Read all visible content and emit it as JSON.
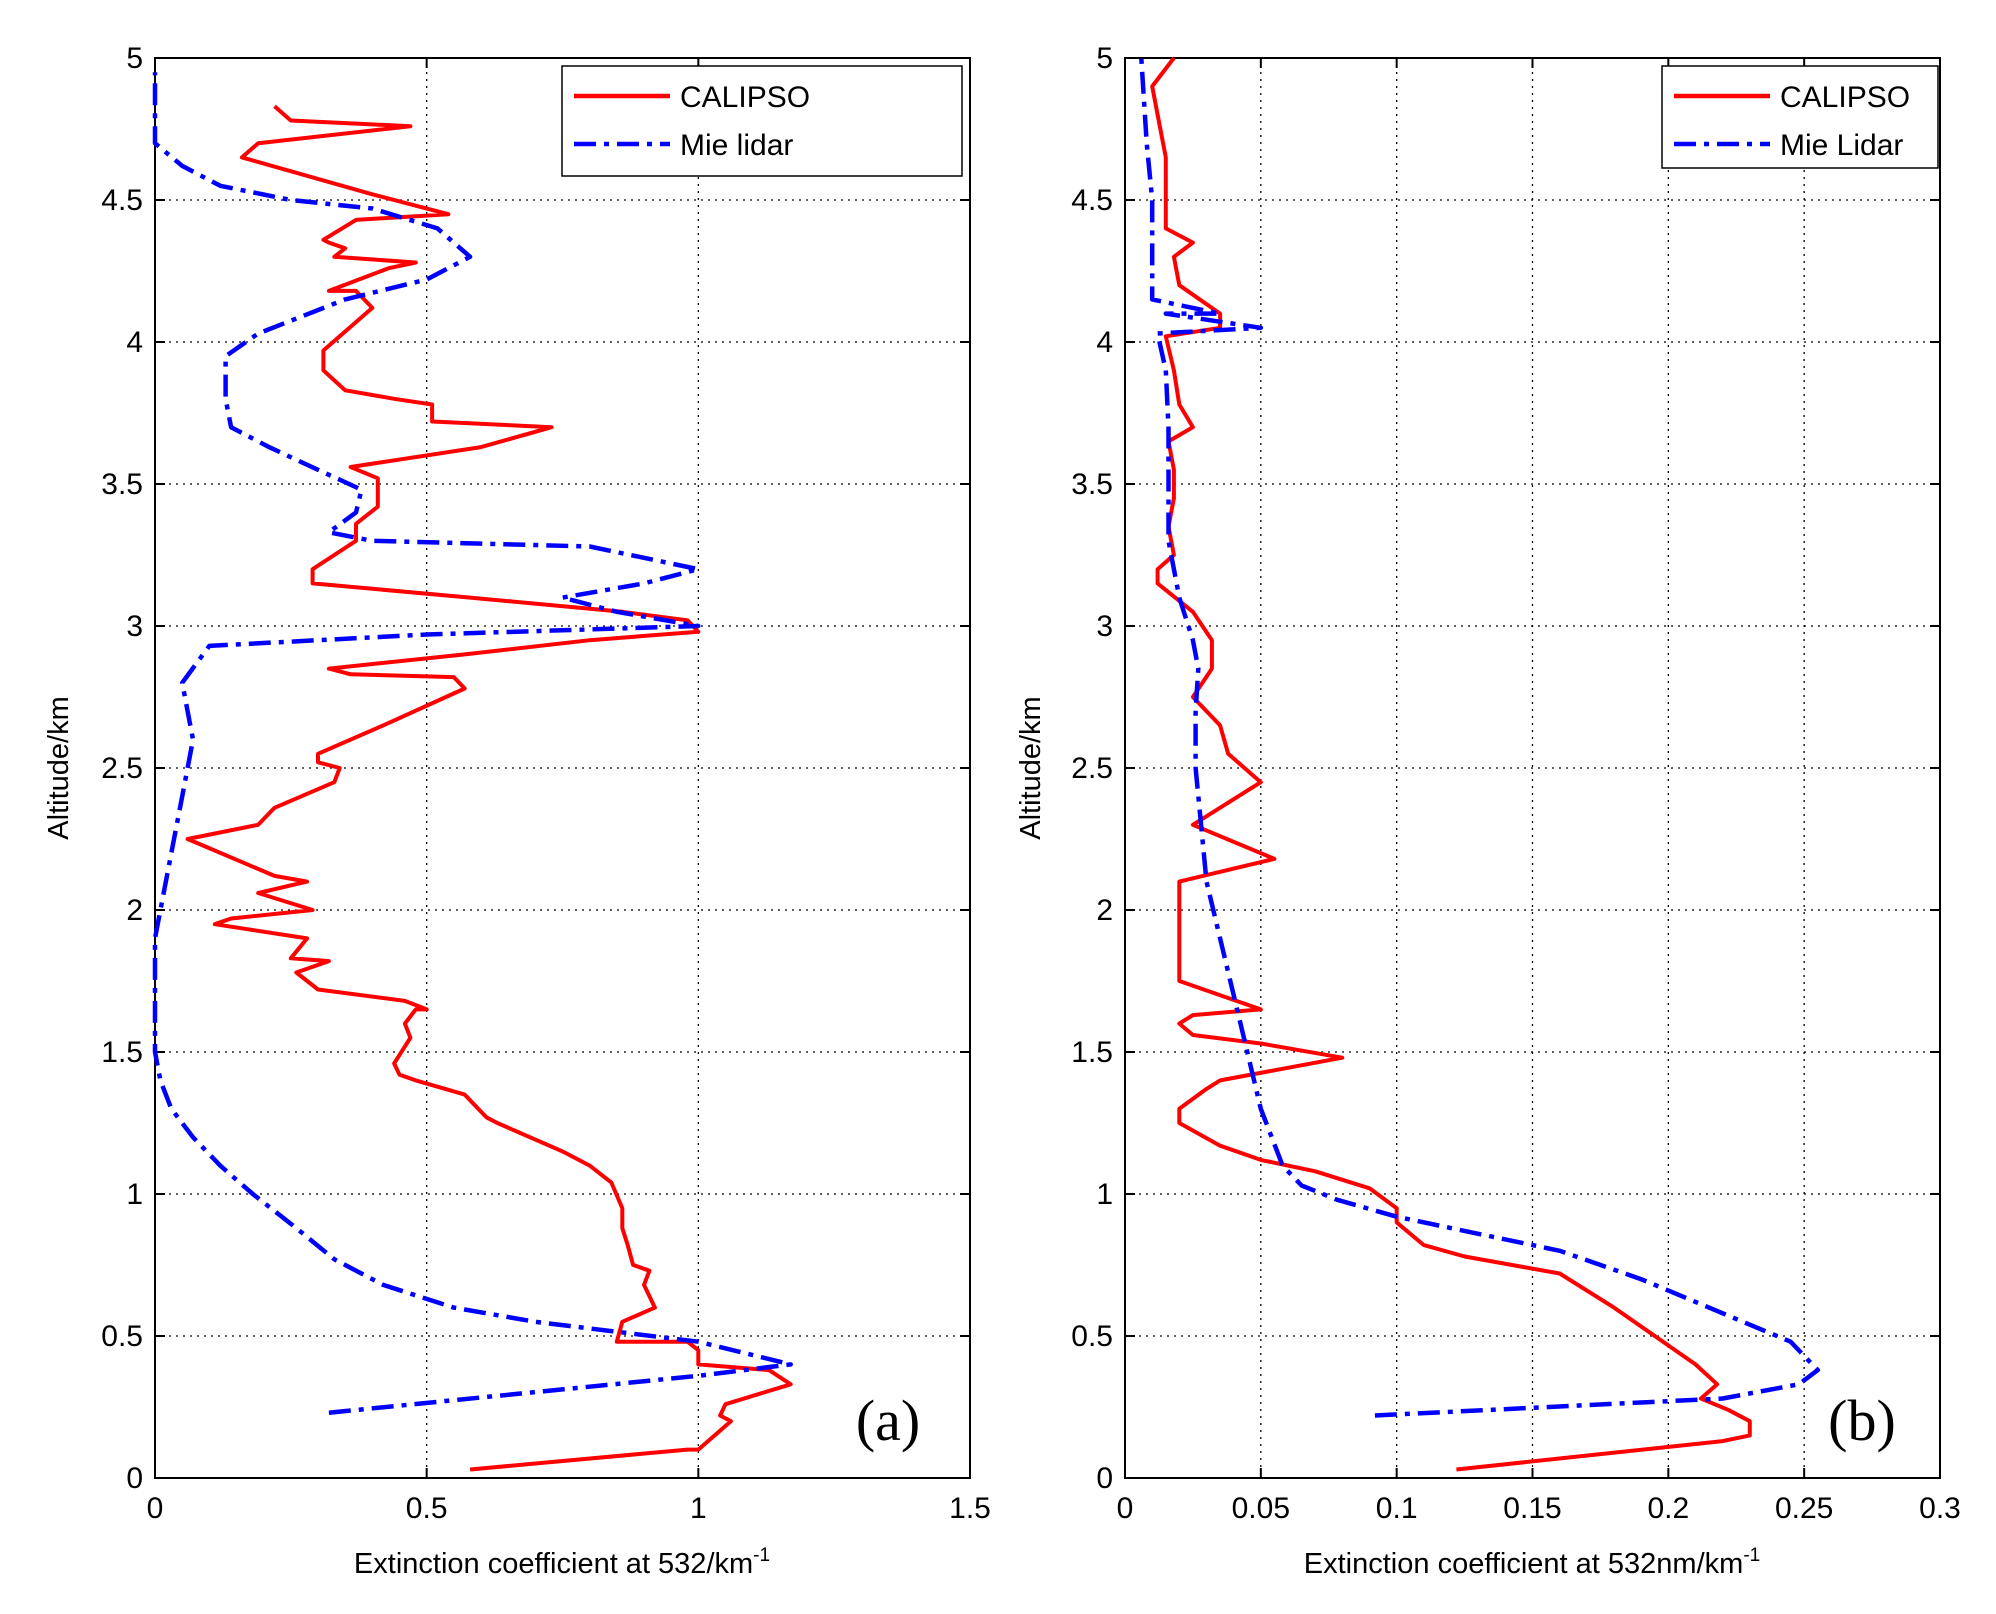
{
  "chart_data": [
    {
      "type": "line",
      "panel_label": "(a)",
      "title": "",
      "xlabel": "Extinction coefficient at 532/km",
      "xlabel_superscript": "-1",
      "ylabel": "Altitude/km",
      "xlim": [
        0,
        1.5
      ],
      "ylim": [
        0,
        5
      ],
      "xticks": [
        0,
        0.5,
        1,
        1.5
      ],
      "xtick_labels": [
        "0",
        "0.5",
        "1",
        "1.5"
      ],
      "yticks": [
        0,
        0.5,
        1,
        1.5,
        2,
        2.5,
        3,
        3.5,
        4,
        4.5,
        5
      ],
      "ytick_labels": [
        "0",
        "0.5",
        "1",
        "1.5",
        "2",
        "2.5",
        "3",
        "3.5",
        "4",
        "4.5",
        "5"
      ],
      "grid": true,
      "legend_position": "top-right",
      "series": [
        {
          "name": "CALIPSO",
          "color": "#ff0000",
          "style": "solid",
          "points": [
            [
              0.58,
              0.03
            ],
            [
              0.98,
              0.1
            ],
            [
              1.0,
              0.1
            ],
            [
              1.06,
              0.2
            ],
            [
              1.04,
              0.22
            ],
            [
              1.05,
              0.26
            ],
            [
              1.17,
              0.33
            ],
            [
              1.13,
              0.38
            ],
            [
              1.0,
              0.4
            ],
            [
              1.0,
              0.45
            ],
            [
              0.98,
              0.48
            ],
            [
              0.85,
              0.48
            ],
            [
              0.86,
              0.55
            ],
            [
              0.92,
              0.6
            ],
            [
              0.9,
              0.68
            ],
            [
              0.91,
              0.73
            ],
            [
              0.88,
              0.75
            ],
            [
              0.87,
              0.82
            ],
            [
              0.86,
              0.88
            ],
            [
              0.86,
              0.95
            ],
            [
              0.84,
              1.04
            ],
            [
              0.8,
              1.1
            ],
            [
              0.75,
              1.15
            ],
            [
              0.63,
              1.25
            ],
            [
              0.61,
              1.27
            ],
            [
              0.57,
              1.35
            ],
            [
              0.48,
              1.4
            ],
            [
              0.45,
              1.42
            ],
            [
              0.44,
              1.46
            ],
            [
              0.47,
              1.55
            ],
            [
              0.46,
              1.6
            ],
            [
              0.48,
              1.65
            ],
            [
              0.5,
              1.65
            ],
            [
              0.46,
              1.68
            ],
            [
              0.3,
              1.72
            ],
            [
              0.26,
              1.78
            ],
            [
              0.32,
              1.82
            ],
            [
              0.25,
              1.83
            ],
            [
              0.28,
              1.9
            ],
            [
              0.11,
              1.95
            ],
            [
              0.14,
              1.97
            ],
            [
              0.29,
              2.0
            ],
            [
              0.19,
              2.06
            ],
            [
              0.28,
              2.1
            ],
            [
              0.22,
              2.12
            ],
            [
              0.06,
              2.25
            ],
            [
              0.19,
              2.3
            ],
            [
              0.22,
              2.36
            ],
            [
              0.33,
              2.45
            ],
            [
              0.34,
              2.5
            ],
            [
              0.3,
              2.52
            ],
            [
              0.3,
              2.55
            ],
            [
              0.42,
              2.65
            ],
            [
              0.57,
              2.78
            ],
            [
              0.55,
              2.82
            ],
            [
              0.36,
              2.83
            ],
            [
              0.32,
              2.85
            ],
            [
              0.57,
              2.9
            ],
            [
              0.8,
              2.95
            ],
            [
              1.0,
              2.98
            ],
            [
              0.98,
              3.02
            ],
            [
              0.86,
              3.05
            ],
            [
              0.58,
              3.1
            ],
            [
              0.29,
              3.15
            ],
            [
              0.29,
              3.2
            ],
            [
              0.33,
              3.25
            ],
            [
              0.37,
              3.3
            ],
            [
              0.37,
              3.36
            ],
            [
              0.41,
              3.42
            ],
            [
              0.41,
              3.52
            ],
            [
              0.36,
              3.56
            ],
            [
              0.6,
              3.63
            ],
            [
              0.73,
              3.7
            ],
            [
              0.51,
              3.72
            ],
            [
              0.51,
              3.78
            ],
            [
              0.44,
              3.8
            ],
            [
              0.35,
              3.83
            ],
            [
              0.31,
              3.9
            ],
            [
              0.31,
              3.97
            ],
            [
              0.4,
              4.12
            ],
            [
              0.37,
              4.18
            ],
            [
              0.32,
              4.18
            ],
            [
              0.43,
              4.26
            ],
            [
              0.48,
              4.28
            ],
            [
              0.33,
              4.3
            ],
            [
              0.35,
              4.33
            ],
            [
              0.32,
              4.35
            ],
            [
              0.31,
              4.36
            ],
            [
              0.37,
              4.43
            ],
            [
              0.54,
              4.45
            ],
            [
              0.48,
              4.48
            ],
            [
              0.4,
              4.52
            ],
            [
              0.16,
              4.65
            ],
            [
              0.19,
              4.7
            ],
            [
              0.47,
              4.76
            ],
            [
              0.25,
              4.78
            ],
            [
              0.22,
              4.83
            ]
          ]
        },
        {
          "name": "Mie lidar",
          "color": "#0000ff",
          "style": "dashdot",
          "points": [
            [
              0.32,
              0.23
            ],
            [
              1.0,
              0.36
            ],
            [
              1.17,
              0.4
            ],
            [
              1.0,
              0.48
            ],
            [
              0.7,
              0.55
            ],
            [
              0.55,
              0.6
            ],
            [
              0.42,
              0.68
            ],
            [
              0.33,
              0.77
            ],
            [
              0.26,
              0.88
            ],
            [
              0.18,
              1.0
            ],
            [
              0.12,
              1.1
            ],
            [
              0.07,
              1.2
            ],
            [
              0.03,
              1.3
            ],
            [
              0.01,
              1.4
            ],
            [
              0.0,
              1.5
            ],
            [
              0.0,
              1.7
            ],
            [
              0.0,
              1.9
            ],
            [
              0.01,
              2.0
            ],
            [
              0.03,
              2.2
            ],
            [
              0.05,
              2.4
            ],
            [
              0.07,
              2.6
            ],
            [
              0.06,
              2.7
            ],
            [
              0.05,
              2.8
            ],
            [
              0.1,
              2.93
            ],
            [
              0.5,
              2.97
            ],
            [
              1.0,
              3.0
            ],
            [
              0.85,
              3.05
            ],
            [
              0.75,
              3.1
            ],
            [
              0.9,
              3.15
            ],
            [
              1.0,
              3.2
            ],
            [
              0.8,
              3.28
            ],
            [
              0.4,
              3.3
            ],
            [
              0.32,
              3.33
            ],
            [
              0.37,
              3.4
            ],
            [
              0.38,
              3.48
            ],
            [
              0.3,
              3.55
            ],
            [
              0.21,
              3.63
            ],
            [
              0.14,
              3.7
            ],
            [
              0.13,
              3.8
            ],
            [
              0.13,
              3.95
            ],
            [
              0.19,
              4.03
            ],
            [
              0.35,
              4.15
            ],
            [
              0.5,
              4.22
            ],
            [
              0.58,
              4.3
            ],
            [
              0.52,
              4.4
            ],
            [
              0.4,
              4.47
            ],
            [
              0.25,
              4.5
            ],
            [
              0.12,
              4.55
            ],
            [
              0.05,
              4.62
            ],
            [
              0.0,
              4.7
            ],
            [
              0.0,
              4.8
            ],
            [
              0.0,
              4.95
            ]
          ]
        }
      ]
    },
    {
      "type": "line",
      "panel_label": "(b)",
      "title": "",
      "xlabel": "Extinction coefficient at 532nm/km",
      "xlabel_superscript": "-1",
      "ylabel": "Altitude/km",
      "xlim": [
        0,
        0.3
      ],
      "ylim": [
        0,
        5
      ],
      "xticks": [
        0,
        0.05,
        0.1,
        0.15,
        0.2,
        0.25,
        0.3
      ],
      "xtick_labels": [
        "0",
        "0.05",
        "0.1",
        "0.15",
        "0.2",
        "0.25",
        "0.3"
      ],
      "yticks": [
        0,
        0.5,
        1,
        1.5,
        2,
        2.5,
        3,
        3.5,
        4,
        4.5,
        5
      ],
      "ytick_labels": [
        "0",
        "0.5",
        "1",
        "1.5",
        "2",
        "2.5",
        "3",
        "3.5",
        "4",
        "4.5",
        "5"
      ],
      "grid": true,
      "legend_position": "top-right",
      "series": [
        {
          "name": "CALIPSO",
          "color": "#ff0000",
          "style": "solid",
          "points": [
            [
              0.122,
              0.03
            ],
            [
              0.22,
              0.13
            ],
            [
              0.23,
              0.15
            ],
            [
              0.23,
              0.2
            ],
            [
              0.222,
              0.24
            ],
            [
              0.212,
              0.28
            ],
            [
              0.218,
              0.33
            ],
            [
              0.21,
              0.4
            ],
            [
              0.195,
              0.5
            ],
            [
              0.18,
              0.6
            ],
            [
              0.16,
              0.72
            ],
            [
              0.125,
              0.78
            ],
            [
              0.11,
              0.82
            ],
            [
              0.1,
              0.9
            ],
            [
              0.1,
              0.95
            ],
            [
              0.09,
              1.02
            ],
            [
              0.07,
              1.08
            ],
            [
              0.05,
              1.12
            ],
            [
              0.035,
              1.17
            ],
            [
              0.02,
              1.25
            ],
            [
              0.02,
              1.3
            ],
            [
              0.03,
              1.37
            ],
            [
              0.035,
              1.4
            ],
            [
              0.08,
              1.48
            ],
            [
              0.05,
              1.53
            ],
            [
              0.025,
              1.56
            ],
            [
              0.02,
              1.6
            ],
            [
              0.025,
              1.63
            ],
            [
              0.05,
              1.65
            ],
            [
              0.02,
              1.75
            ],
            [
              0.02,
              1.85
            ],
            [
              0.02,
              2.0
            ],
            [
              0.02,
              2.1
            ],
            [
              0.055,
              2.18
            ],
            [
              0.025,
              2.3
            ],
            [
              0.05,
              2.45
            ],
            [
              0.038,
              2.55
            ],
            [
              0.035,
              2.65
            ],
            [
              0.025,
              2.75
            ],
            [
              0.032,
              2.85
            ],
            [
              0.032,
              2.95
            ],
            [
              0.025,
              3.05
            ],
            [
              0.012,
              3.15
            ],
            [
              0.012,
              3.2
            ],
            [
              0.018,
              3.25
            ],
            [
              0.016,
              3.35
            ],
            [
              0.018,
              3.45
            ],
            [
              0.018,
              3.55
            ],
            [
              0.016,
              3.65
            ],
            [
              0.025,
              3.7
            ],
            [
              0.02,
              3.78
            ],
            [
              0.018,
              3.9
            ],
            [
              0.015,
              4.02
            ],
            [
              0.035,
              4.05
            ],
            [
              0.035,
              4.1
            ],
            [
              0.02,
              4.2
            ],
            [
              0.018,
              4.3
            ],
            [
              0.025,
              4.35
            ],
            [
              0.015,
              4.4
            ],
            [
              0.015,
              4.5
            ],
            [
              0.015,
              4.65
            ],
            [
              0.012,
              4.8
            ],
            [
              0.01,
              4.9
            ],
            [
              0.018,
              5.0
            ]
          ]
        },
        {
          "name": "Mie Lidar",
          "color": "#0000ff",
          "style": "dashdot",
          "points": [
            [
              0.092,
              0.22
            ],
            [
              0.22,
              0.28
            ],
            [
              0.248,
              0.33
            ],
            [
              0.255,
              0.38
            ],
            [
              0.245,
              0.48
            ],
            [
              0.22,
              0.58
            ],
            [
              0.19,
              0.7
            ],
            [
              0.16,
              0.8
            ],
            [
              0.13,
              0.86
            ],
            [
              0.1,
              0.92
            ],
            [
              0.078,
              0.98
            ],
            [
              0.065,
              1.03
            ],
            [
              0.058,
              1.1
            ],
            [
              0.05,
              1.3
            ],
            [
              0.045,
              1.5
            ],
            [
              0.04,
              1.7
            ],
            [
              0.035,
              1.9
            ],
            [
              0.03,
              2.1
            ],
            [
              0.028,
              2.3
            ],
            [
              0.026,
              2.5
            ],
            [
              0.026,
              2.7
            ],
            [
              0.027,
              2.85
            ],
            [
              0.025,
              2.95
            ],
            [
              0.02,
              3.1
            ],
            [
              0.016,
              3.3
            ],
            [
              0.016,
              3.5
            ],
            [
              0.016,
              3.7
            ],
            [
              0.015,
              3.9
            ],
            [
              0.012,
              4.03
            ],
            [
              0.05,
              4.05
            ],
            [
              0.015,
              4.1
            ],
            [
              0.035,
              4.1
            ],
            [
              0.01,
              4.15
            ],
            [
              0.01,
              4.3
            ],
            [
              0.01,
              4.5
            ],
            [
              0.008,
              4.7
            ],
            [
              0.007,
              4.85
            ],
            [
              0.006,
              5.0
            ]
          ]
        }
      ]
    }
  ]
}
